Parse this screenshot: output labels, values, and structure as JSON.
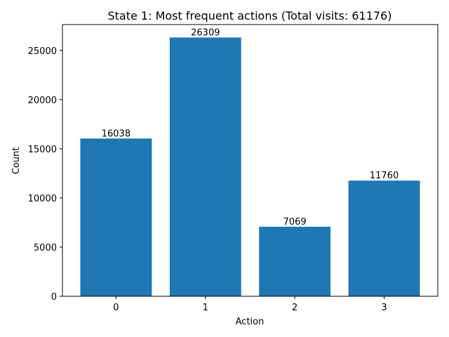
{
  "chart_data": {
    "type": "bar",
    "title": "State 1: Most frequent actions (Total visits: 61176)",
    "xlabel": "Action",
    "ylabel": "Count",
    "categories": [
      "0",
      "1",
      "2",
      "3"
    ],
    "values": [
      16038,
      26309,
      7069,
      11760
    ],
    "data_labels": [
      "16038",
      "26309",
      "7069",
      "11760"
    ],
    "ylim": [
      0,
      27624
    ],
    "yticks": [
      0,
      5000,
      10000,
      15000,
      20000,
      25000
    ],
    "ytick_labels": [
      "0",
      "5000",
      "10000",
      "15000",
      "20000",
      "25000"
    ],
    "grid": false,
    "bar_color": "#1f77b4"
  }
}
